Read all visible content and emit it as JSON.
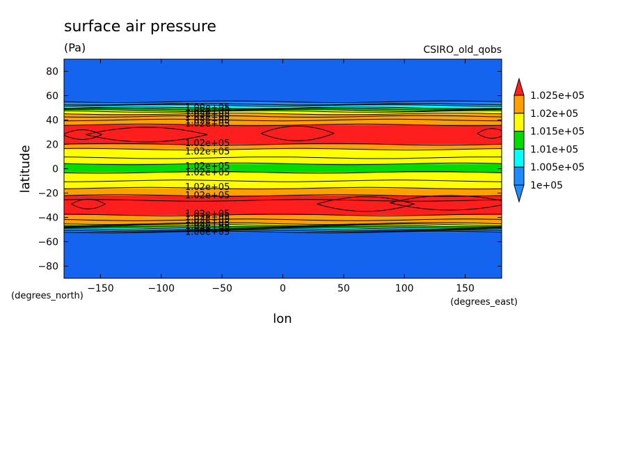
{
  "chart_data": {
    "type": "heatmap",
    "title": "surface air pressure",
    "units": "(Pa)",
    "model": "CSIRO_old_qobs",
    "xlabel": "lon",
    "ylabel": "latitude",
    "x_units": "(degrees_east)",
    "y_units": "(degrees_north)",
    "xlim": [
      -180,
      180
    ],
    "ylim": [
      -90,
      90
    ],
    "x_ticks": [
      -150,
      -100,
      -50,
      0,
      50,
      100,
      150
    ],
    "y_ticks": [
      80,
      60,
      40,
      20,
      0,
      -20,
      -40,
      -60,
      -80
    ],
    "colorbar": {
      "labels": [
        "1e+05",
        "1.005e+05",
        "1.01e+05",
        "1.015e+05",
        "1.02e+05",
        "1.025e+05"
      ],
      "colors": [
        "#1e8cff",
        "#00ffff",
        "#00dc00",
        "#ffff00",
        "#ffa000",
        "#ff1e1e"
      ]
    },
    "bands": [
      {
        "lat": [
          55,
          90
        ],
        "color": "#1464f0"
      },
      {
        "lat": [
          52,
          55
        ],
        "color": "#1e8cff"
      },
      {
        "lat": [
          50,
          52
        ],
        "color": "#00ffff"
      },
      {
        "lat": [
          48,
          50
        ],
        "color": "#00dc00"
      },
      {
        "lat": [
          45,
          48
        ],
        "color": "#ffff00"
      },
      {
        "lat": [
          40,
          45
        ],
        "color": "#ffa000"
      },
      {
        "lat": [
          36,
          40
        ],
        "color": "#ffa000"
      },
      {
        "lat": [
          20,
          36
        ],
        "color": "#ff1e1e"
      },
      {
        "lat": [
          16,
          20
        ],
        "color": "#ffa000"
      },
      {
        "lat": [
          9,
          16
        ],
        "color": "#ffff00"
      },
      {
        "lat": [
          4,
          9
        ],
        "color": "#ffff00"
      },
      {
        "lat": [
          -3,
          4
        ],
        "color": "#00dc00"
      },
      {
        "lat": [
          -10,
          -3
        ],
        "color": "#ffff00"
      },
      {
        "lat": [
          -16,
          -10
        ],
        "color": "#ffff00"
      },
      {
        "lat": [
          -22,
          -16
        ],
        "color": "#ffa000"
      },
      {
        "lat": [
          -38,
          -22
        ],
        "color": "#ff1e1e"
      },
      {
        "lat": [
          -42,
          -38
        ],
        "color": "#ffa000"
      },
      {
        "lat": [
          -45,
          -42
        ],
        "color": "#ffa000"
      },
      {
        "lat": [
          -47,
          -45
        ],
        "color": "#ffff00"
      },
      {
        "lat": [
          -48.5,
          -47
        ],
        "color": "#00dc00"
      },
      {
        "lat": [
          -50,
          -48.5
        ],
        "color": "#00ffff"
      },
      {
        "lat": [
          -52,
          -50
        ],
        "color": "#1e8cff"
      },
      {
        "lat": [
          -90,
          -52
        ],
        "color": "#1464f0"
      }
    ],
    "contour_lats": [
      55,
      53,
      52,
      50,
      49,
      48,
      47,
      45,
      43,
      40,
      36,
      20,
      16,
      9,
      4,
      -3,
      -10,
      -16,
      -22,
      -26,
      -38,
      -42,
      -45,
      -46,
      -47,
      -48,
      -49,
      -50,
      -51,
      -52
    ],
    "contour_labels": [
      {
        "text": "1.00e+05",
        "lon": -62,
        "lat": 50.5
      },
      {
        "text": "1.02e+05",
        "lon": -62,
        "lat": 48
      },
      {
        "text": "1.02e+05",
        "lon": -62,
        "lat": 45.5
      },
      {
        "text": "1.02e+05",
        "lon": -62,
        "lat": 43
      },
      {
        "text": "1.02e+05",
        "lon": -62,
        "lat": 40
      },
      {
        "text": "1.02e+05",
        "lon": -62,
        "lat": 37.5
      },
      {
        "text": "1.02e+05",
        "lon": -62,
        "lat": 21.5
      },
      {
        "text": "1.02e+05",
        "lon": -62,
        "lat": 14.5
      },
      {
        "text": "1.02e+05",
        "lon": -62,
        "lat": 2.5
      },
      {
        "text": "1.02e+05",
        "lon": -62,
        "lat": -2.5
      },
      {
        "text": "1.02e+05",
        "lon": -62,
        "lat": -14.5
      },
      {
        "text": "1.02e+05",
        "lon": -62,
        "lat": -21.5
      },
      {
        "text": "1.02e+05",
        "lon": -62,
        "lat": -36.5
      },
      {
        "text": "1.02e+05",
        "lon": -62,
        "lat": -39
      },
      {
        "text": "1.02e+05",
        "lon": -62,
        "lat": -41.5
      },
      {
        "text": "1.02e+05",
        "lon": -62,
        "lat": -44
      },
      {
        "text": "1.02e+05",
        "lon": -62,
        "lat": -46.5
      },
      {
        "text": "1.02e+05",
        "lon": -62,
        "lat": -49
      },
      {
        "text": "1.00e+05",
        "lon": -62,
        "lat": -51.5
      }
    ],
    "highs": [
      {
        "lon": -165,
        "lat": 28,
        "w": 16,
        "h": 4
      },
      {
        "lon": -112,
        "lat": 28,
        "w": 50,
        "h": 6
      },
      {
        "lon": 12,
        "lat": 29,
        "w": 30,
        "h": 6
      },
      {
        "lon": 172,
        "lat": 29,
        "w": 12,
        "h": 4
      },
      {
        "lon": -160,
        "lat": -29,
        "w": 14,
        "h": 4
      },
      {
        "lon": 68,
        "lat": -29,
        "w": 40,
        "h": 6
      },
      {
        "lon": 138,
        "lat": -28,
        "w": 50,
        "h": 6
      }
    ]
  }
}
